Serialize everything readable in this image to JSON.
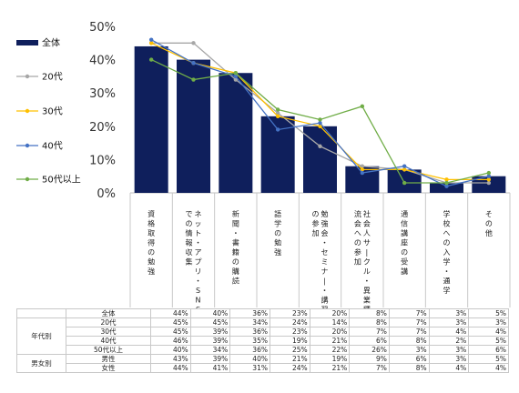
{
  "chart_data": {
    "type": "bar",
    "y_ticks": [
      "0%",
      "10%",
      "20%",
      "30%",
      "40%",
      "50%"
    ],
    "ylim": [
      0,
      50
    ],
    "categories": [
      "資格取得の勉強",
      "ネット・アプリ・SNS等での情報収集",
      "新聞・書籍の購読",
      "語学の勉強",
      "勉強会・セミナー・講習への参加",
      "社会人サークル・異業種交流会への参加",
      "通信講座の受講",
      "学校への入学・通学",
      "その他"
    ],
    "bar_series": {
      "name": "全体",
      "color": "#0f1f5c",
      "values": [
        44,
        40,
        36,
        23,
        20,
        8,
        7,
        3,
        5
      ]
    },
    "line_series": [
      {
        "name": "20代",
        "color": "#a6a6a6",
        "values": [
          45,
          45,
          34,
          24,
          14,
          8,
          7,
          3,
          3
        ]
      },
      {
        "name": "30代",
        "color": "#ffc000",
        "values": [
          45,
          39,
          36,
          23,
          20,
          7,
          7,
          4,
          4
        ]
      },
      {
        "name": "40代",
        "color": "#4472c4",
        "values": [
          46,
          39,
          35,
          19,
          21,
          6,
          8,
          2,
          5
        ]
      },
      {
        "name": "50代以上",
        "color": "#70ad47",
        "values": [
          40,
          34,
          36,
          25,
          22,
          26,
          3,
          3,
          6
        ]
      }
    ],
    "legend_position": "left"
  },
  "table": {
    "rows": [
      {
        "group": "",
        "label": "全体",
        "values": [
          "44%",
          "40%",
          "36%",
          "23%",
          "20%",
          "8%",
          "7%",
          "3%",
          "5%"
        ]
      },
      {
        "group": "年代別",
        "label": "20代",
        "values": [
          "45%",
          "45%",
          "34%",
          "24%",
          "14%",
          "8%",
          "7%",
          "3%",
          "3%"
        ]
      },
      {
        "group": "年代別",
        "label": "30代",
        "values": [
          "45%",
          "39%",
          "36%",
          "23%",
          "20%",
          "7%",
          "7%",
          "4%",
          "4%"
        ]
      },
      {
        "group": "年代別",
        "label": "40代",
        "values": [
          "46%",
          "39%",
          "35%",
          "19%",
          "21%",
          "6%",
          "8%",
          "2%",
          "5%"
        ]
      },
      {
        "group": "年代別",
        "label": "50代以上",
        "values": [
          "40%",
          "34%",
          "36%",
          "25%",
          "22%",
          "26%",
          "3%",
          "3%",
          "6%"
        ]
      },
      {
        "group": "男女別",
        "label": "男性",
        "values": [
          "43%",
          "39%",
          "40%",
          "21%",
          "19%",
          "9%",
          "6%",
          "3%",
          "5%"
        ]
      },
      {
        "group": "男女別",
        "label": "女性",
        "values": [
          "44%",
          "41%",
          "31%",
          "24%",
          "21%",
          "7%",
          "8%",
          "4%",
          "4%"
        ]
      }
    ]
  }
}
